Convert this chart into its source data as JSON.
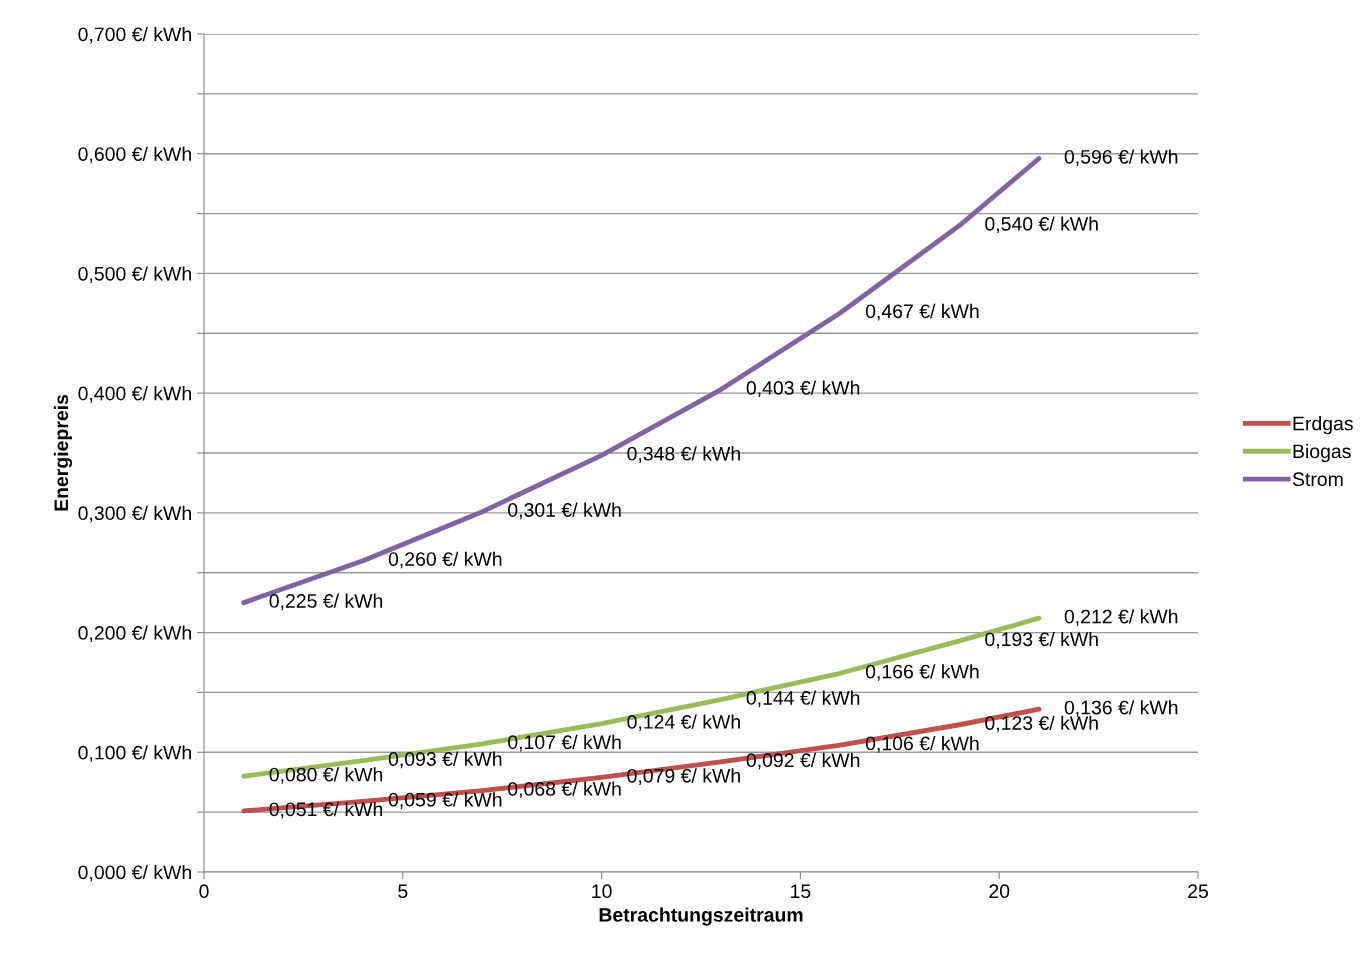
{
  "chart_data": {
    "type": "line",
    "xlabel": "Betrachtungszeitraum",
    "ylabel": "Energiepreis",
    "x": [
      1,
      4,
      7,
      10,
      13,
      16,
      19,
      21
    ],
    "series": [
      {
        "name": "Erdgas",
        "color": "#c0504d",
        "values": [
          0.051,
          0.059,
          0.068,
          0.079,
          0.092,
          0.106,
          0.123,
          0.136
        ],
        "value_labels": [
          "0,051 €/ kWh",
          "0,059 €/ kWh",
          "0,068 €/ kWh",
          "0,079 €/ kWh",
          "0,092 €/ kWh",
          "0,106 €/ kWh",
          "0,123 €/ kWh",
          "0,136 €/ kWh"
        ]
      },
      {
        "name": "Biogas",
        "color": "#9bbb59",
        "values": [
          0.08,
          0.093,
          0.107,
          0.124,
          0.144,
          0.166,
          0.193,
          0.212
        ],
        "value_labels": [
          "0,080 €/ kWh",
          "0,093 €/ kWh",
          "0,107 €/ kWh",
          "0,124 €/ kWh",
          "0,144 €/ kWh",
          "0,166 €/ kWh",
          "0,193 €/ kWh",
          "0,212 €/ kWh"
        ]
      },
      {
        "name": "Strom",
        "color": "#8064a2",
        "values": [
          0.225,
          0.26,
          0.301,
          0.348,
          0.403,
          0.467,
          0.54,
          0.596
        ],
        "value_labels": [
          "0,225 €/ kWh",
          "0,260 €/ kWh",
          "0,301 €/ kWh",
          "0,348 €/ kWh",
          "0,403 €/ kWh",
          "0,467 €/ kWh",
          "0,540 €/ kWh",
          "0,596 €/ kWh"
        ]
      }
    ],
    "xlim": [
      0,
      25
    ],
    "xticks": [
      0,
      5,
      10,
      15,
      20,
      25
    ],
    "ylim": [
      0,
      0.7
    ],
    "yticks": [
      {
        "value": 0,
        "label": "0,000 €/ kWh"
      },
      {
        "value": 0.05,
        "label": null
      },
      {
        "value": 0.1,
        "label": "0,100 €/ kWh"
      },
      {
        "value": 0.15,
        "label": null
      },
      {
        "value": 0.2,
        "label": "0,200 €/ kWh"
      },
      {
        "value": 0.25,
        "label": null
      },
      {
        "value": 0.3,
        "label": "0,300 €/ kWh"
      },
      {
        "value": 0.35,
        "label": null
      },
      {
        "value": 0.4,
        "label": "0,400 €/ kWh"
      },
      {
        "value": 0.45,
        "label": null
      },
      {
        "value": 0.5,
        "label": "0,500 €/ kWh"
      },
      {
        "value": 0.55,
        "label": null
      },
      {
        "value": 0.6,
        "label": "0,600 €/ kWh"
      },
      {
        "value": 0.65,
        "label": null
      },
      {
        "value": 0.7,
        "label": "0,700 €/ kWh"
      }
    ],
    "grid": "y",
    "legend": "right",
    "marker": "none",
    "line_style": "solid"
  }
}
